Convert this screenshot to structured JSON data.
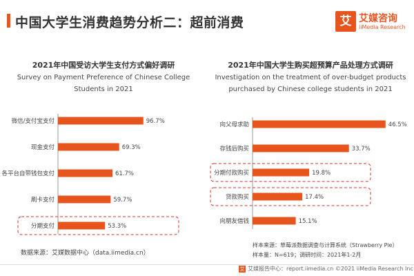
{
  "header": {
    "title": "中国大学生消费趋势分析二：超前消费",
    "logo_mark": "艾",
    "logo_cn": "艾媒咨询",
    "logo_en": "iiMedia Research"
  },
  "colors": {
    "bar": "#e8541e",
    "highlight_border": "#d93025",
    "accent": "#e8541e"
  },
  "chart_data": [
    {
      "type": "bar",
      "orientation": "horizontal",
      "title": "2021年中国受访大学生支付方式偏好调研",
      "subtitle": [
        "Survey on Payment Preference of Chinese College",
        "Students in 2021"
      ],
      "categories": [
        "微信/支付宝支付",
        "现金支付",
        "各平台自带钱包支付",
        "刷卡支付",
        "分期支付"
      ],
      "values": [
        96.7,
        69.3,
        61.7,
        59.7,
        53.3
      ],
      "value_labels": [
        "96.7%",
        "69.3%",
        "61.7%",
        "59.7%",
        "53.3%"
      ],
      "unit": "%",
      "xlim": [
        0,
        100
      ],
      "highlighted": [
        "分期支付"
      ],
      "grid": false,
      "legend": "none"
    },
    {
      "type": "bar",
      "orientation": "horizontal",
      "title": "2021年中国大学生购买超预算产品处理方式调研",
      "subtitle": [
        "Investigation on the treatment of over-budget products",
        "purchased by Chinese college students in 2021"
      ],
      "categories": [
        "向父母求助",
        "存钱后购买",
        "分期付款购买",
        "贷款购买",
        "向朋友借钱"
      ],
      "values": [
        46.5,
        33.7,
        19.8,
        17.4,
        15.1
      ],
      "value_labels": [
        "46.5%",
        "33.7%",
        "19.8%",
        "17.4%",
        "15.1%"
      ],
      "unit": "%",
      "xlim": [
        0,
        48
      ],
      "highlighted": [
        "分期付款购买",
        "贷款购买"
      ],
      "grid": false,
      "legend": "none"
    }
  ],
  "source": "数据来源：艾媒数据中心（data.iimedia.cn）",
  "sample": {
    "line1": "样本来源：草莓派数据调查与计算系统（Strawberry Pie）",
    "line2": "样本量：N=619；调研时间：2021年1-2月"
  },
  "footer": {
    "mark": "艾",
    "text": "艾媒报告中心：report.iimedia.cn  ©2021  iiMedia Research Inc"
  }
}
